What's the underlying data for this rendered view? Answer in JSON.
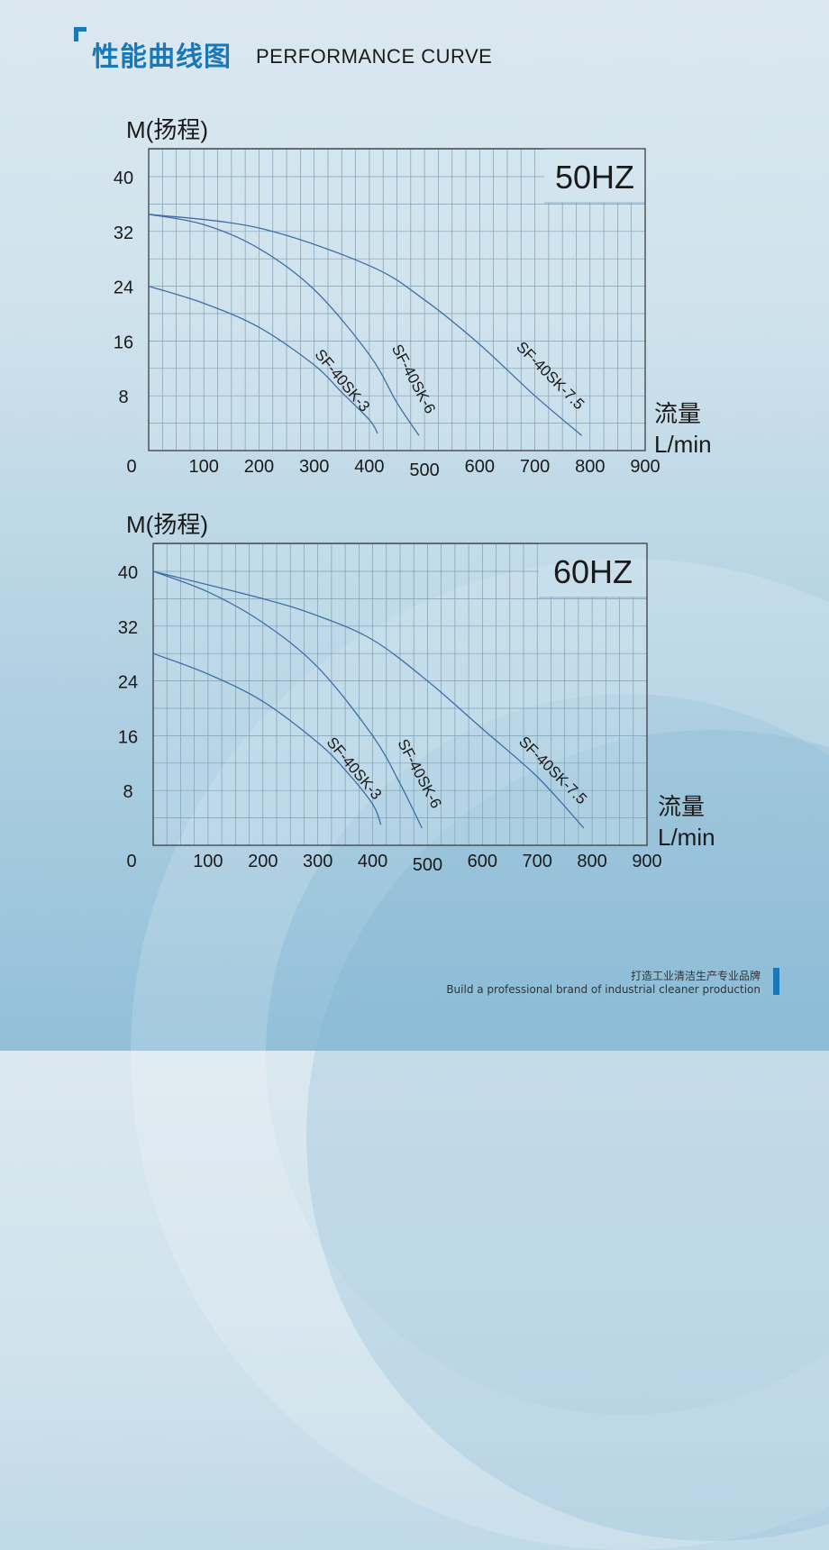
{
  "header": {
    "title_cn": "性能曲线图",
    "title_en": "PERFORMANCE CURVE",
    "accent_color": "#1a78b8"
  },
  "footer": {
    "slogan_cn": "打造工业清洁生产专业品牌",
    "slogan_en": "Build a professional brand of industrial cleaner production"
  },
  "charts": [
    {
      "frequency_label": "50HZ",
      "y_axis_label": "M(扬程)",
      "x_axis_label_cn": "流量",
      "x_axis_label_unit": "L/min",
      "y_ticks": [
        "40",
        "32",
        "24",
        "16",
        "8",
        "0"
      ],
      "x_ticks": [
        "100",
        "200",
        "300",
        "400",
        "500",
        "600",
        "700",
        "800",
        "900"
      ],
      "series_labels": [
        "SF-40SK-3",
        "SF-40SK-6",
        "SF-40SK-7.5"
      ]
    },
    {
      "frequency_label": "60HZ",
      "y_axis_label": "M(扬程)",
      "x_axis_label_cn": "流量",
      "x_axis_label_unit": "L/min",
      "y_ticks": [
        "40",
        "32",
        "24",
        "16",
        "8",
        "0"
      ],
      "x_ticks": [
        "100",
        "200",
        "300",
        "400",
        "500",
        "600",
        "700",
        "800",
        "900"
      ],
      "series_labels": [
        "SF-40SK-3",
        "SF-40SK-6",
        "SF-40SK-7.5"
      ]
    }
  ],
  "chart_data": [
    {
      "type": "line",
      "title": "50HZ",
      "xlabel": "流量 L/min",
      "ylabel": "M(扬程)",
      "xlim": [
        0,
        900
      ],
      "ylim": [
        0,
        43
      ],
      "x_ticks": [
        0,
        100,
        200,
        300,
        400,
        500,
        600,
        700,
        800,
        900
      ],
      "y_ticks": [
        0,
        8,
        16,
        24,
        32,
        40
      ],
      "grid": true,
      "series": [
        {
          "name": "SF-40SK-3",
          "x": [
            0,
            100,
            200,
            300,
            350,
            400,
            415
          ],
          "y": [
            24,
            21.5,
            18,
            12.5,
            8.5,
            4.5,
            2.5
          ]
        },
        {
          "name": "SF-40SK-6",
          "x": [
            0,
            100,
            200,
            300,
            400,
            450,
            490
          ],
          "y": [
            34.5,
            33,
            29.5,
            23.5,
            14,
            7,
            2.2
          ]
        },
        {
          "name": "SF-40SK-7.5",
          "x": [
            0,
            200,
            400,
            500,
            600,
            700,
            785
          ],
          "y": [
            34.5,
            32.5,
            27,
            22,
            15.5,
            8,
            2.2
          ]
        }
      ]
    },
    {
      "type": "line",
      "title": "60HZ",
      "xlabel": "流量 L/min",
      "ylabel": "M(扬程)",
      "xlim": [
        0,
        900
      ],
      "ylim": [
        0,
        43
      ],
      "x_ticks": [
        0,
        100,
        200,
        300,
        400,
        500,
        600,
        700,
        800,
        900
      ],
      "y_ticks": [
        0,
        8,
        16,
        24,
        32,
        40
      ],
      "grid": true,
      "series": [
        {
          "name": "SF-40SK-3",
          "x": [
            0,
            100,
            200,
            300,
            350,
            400,
            415
          ],
          "y": [
            28,
            25,
            21,
            15,
            11,
            6,
            3
          ]
        },
        {
          "name": "SF-40SK-6",
          "x": [
            0,
            100,
            200,
            300,
            400,
            450,
            490
          ],
          "y": [
            40,
            37,
            32.5,
            26,
            16,
            9,
            2.5
          ]
        },
        {
          "name": "SF-40SK-7.5",
          "x": [
            0,
            200,
            300,
            400,
            500,
            600,
            700,
            785
          ],
          "y": [
            40,
            36,
            33.5,
            30,
            24,
            17,
            10,
            2.5
          ]
        }
      ]
    }
  ]
}
